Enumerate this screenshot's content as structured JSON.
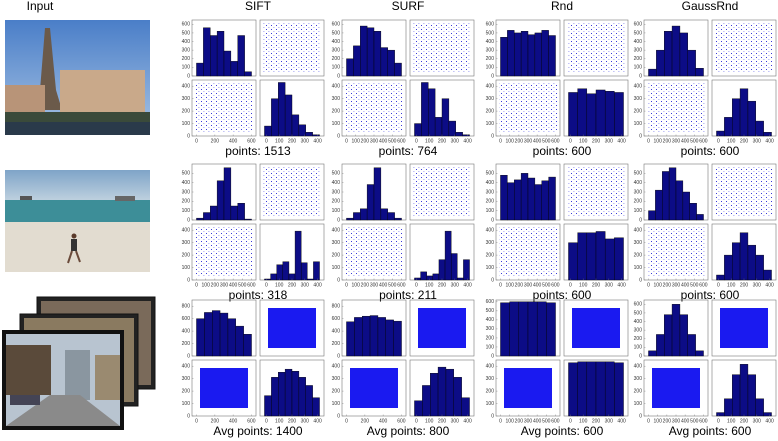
{
  "header": {
    "input": "Input",
    "methods": [
      "SIFT",
      "SURF",
      "Rnd",
      "GaussRnd"
    ]
  },
  "rows": [
    {
      "cells": [
        {
          "points": "points: 1513",
          "scatter": "sparse",
          "hx": [
            150,
            560,
            470,
            520,
            290,
            170,
            470,
            50
          ],
          "hx_ylim": [
            0,
            650
          ],
          "hx_yticks": [
            0,
            100,
            200,
            300,
            400,
            500,
            600
          ],
          "hy": [
            80,
            300,
            430,
            330,
            170,
            90,
            30,
            10
          ],
          "hy_ylim": [
            0,
            450
          ],
          "sc_ylim": [
            0,
            450
          ],
          "sc_yticks": [
            0,
            100,
            200,
            300,
            400
          ],
          "sc_xlim": [
            -50,
            650
          ],
          "sc_xticks": [
            0,
            200,
            400,
            600
          ],
          "hy_xlim": [
            -50,
            450
          ],
          "hy_xticks": [
            0,
            100,
            200,
            300,
            400
          ]
        },
        {
          "points": "points: 764",
          "scatter": "sparse",
          "hx": [
            200,
            350,
            580,
            560,
            520,
            330,
            300,
            150
          ],
          "hx_ylim": [
            0,
            650
          ],
          "hx_yticks": [
            0,
            100,
            200,
            300,
            400,
            500,
            600
          ],
          "hy": [
            100,
            430,
            380,
            150,
            300,
            120,
            30,
            10
          ],
          "hy_ylim": [
            0,
            450
          ],
          "sc_ylim": [
            0,
            450
          ],
          "sc_yticks": [
            0,
            100,
            200,
            300,
            400
          ],
          "sc_xlim": [
            -50,
            650
          ],
          "sc_xticks": [
            0,
            100,
            200,
            300,
            400,
            500,
            600
          ],
          "hy_xlim": [
            -50,
            450
          ],
          "hy_xticks": [
            0,
            100,
            200,
            300,
            400
          ]
        },
        {
          "points": "points: 600",
          "scatter": "sparse",
          "hx": [
            450,
            530,
            500,
            520,
            480,
            500,
            530,
            470
          ],
          "hx_ylim": [
            0,
            650
          ],
          "hx_yticks": [
            0,
            100,
            200,
            300,
            400,
            500,
            600
          ],
          "hy": [
            350,
            380,
            340,
            370,
            360,
            350
          ],
          "hy_ylim": [
            0,
            450
          ],
          "sc_ylim": [
            0,
            450
          ],
          "sc_yticks": [
            0,
            100,
            200,
            300,
            400
          ],
          "sc_xlim": [
            -50,
            650
          ],
          "sc_xticks": [
            0,
            100,
            200,
            300,
            400,
            500,
            600
          ],
          "hy_xlim": [
            -50,
            450
          ],
          "hy_xticks": [
            0,
            100,
            200,
            300,
            400
          ]
        },
        {
          "points": "points: 600",
          "scatter": "sparse",
          "hx": [
            80,
            300,
            520,
            580,
            500,
            300,
            90
          ],
          "hx_ylim": [
            0,
            650
          ],
          "hx_yticks": [
            0,
            100,
            200,
            300,
            400,
            500,
            600
          ],
          "hy": [
            40,
            150,
            300,
            380,
            280,
            120,
            30
          ],
          "hy_ylim": [
            0,
            450
          ],
          "sc_ylim": [
            0,
            450
          ],
          "sc_yticks": [
            0,
            100,
            200,
            300,
            400
          ],
          "sc_xlim": [
            -50,
            650
          ],
          "sc_xticks": [
            0,
            100,
            200,
            300,
            400,
            500,
            600
          ],
          "hy_xlim": [
            -50,
            450
          ],
          "hy_xticks": [
            0,
            100,
            200,
            300,
            400
          ]
        }
      ]
    },
    {
      "cells": [
        {
          "points": "points: 318",
          "scatter": "sparse",
          "hx": [
            20,
            80,
            150,
            420,
            560,
            150,
            180,
            10
          ],
          "hx_ylim": [
            0,
            600
          ],
          "hx_yticks": [
            0,
            100,
            200,
            300,
            400,
            500
          ],
          "hy": [
            10,
            60,
            150,
            180,
            60,
            480,
            170,
            10,
            180
          ],
          "hy_ylim": [
            0,
            550
          ],
          "sc_ylim": [
            0,
            450
          ],
          "sc_yticks": [
            0,
            100,
            200,
            300,
            400
          ],
          "sc_xlim": [
            -50,
            650
          ],
          "sc_xticks": [
            0,
            100,
            200,
            300,
            400,
            500,
            600
          ],
          "hy_xlim": [
            -50,
            450
          ],
          "hy_xticks": [
            0,
            100,
            200,
            300,
            400
          ]
        },
        {
          "points": "points: 211",
          "scatter": "sparse",
          "hx": [
            20,
            80,
            120,
            380,
            560,
            120,
            80,
            20
          ],
          "hx_ylim": [
            0,
            600
          ],
          "hx_yticks": [
            0,
            100,
            200,
            300,
            400,
            500
          ],
          "hy": [
            20,
            80,
            40,
            60,
            200,
            480,
            260,
            20,
            200
          ],
          "hy_ylim": [
            0,
            550
          ],
          "sc_ylim": [
            0,
            450
          ],
          "sc_yticks": [
            0,
            100,
            200,
            300,
            400
          ],
          "sc_xlim": [
            -50,
            650
          ],
          "sc_xticks": [
            0,
            100,
            200,
            300,
            400,
            500,
            600
          ],
          "hy_xlim": [
            -50,
            450
          ],
          "hy_xticks": [
            0,
            100,
            200,
            300,
            400
          ]
        },
        {
          "points": "points: 600",
          "scatter": "sparse",
          "hx": [
            480,
            400,
            430,
            500,
            450,
            380,
            420,
            460
          ],
          "hx_ylim": [
            0,
            600
          ],
          "hx_yticks": [
            0,
            100,
            200,
            300,
            400,
            500
          ],
          "hy": [
            300,
            380,
            380,
            390,
            330,
            340
          ],
          "hy_ylim": [
            0,
            450
          ],
          "sc_ylim": [
            0,
            450
          ],
          "sc_yticks": [
            0,
            100,
            200,
            300,
            400
          ],
          "sc_xlim": [
            -50,
            650
          ],
          "sc_xticks": [
            0,
            100,
            200,
            300,
            400,
            500,
            600
          ],
          "hy_xlim": [
            -50,
            450
          ],
          "hy_xticks": [
            0,
            100,
            200,
            300,
            400
          ]
        },
        {
          "points": "points: 600",
          "scatter": "sparse",
          "hx": [
            100,
            320,
            520,
            560,
            420,
            300,
            180,
            60
          ],
          "hx_ylim": [
            0,
            600
          ],
          "hx_yticks": [
            0,
            100,
            200,
            300,
            400,
            500
          ],
          "hy": [
            40,
            200,
            300,
            380,
            280,
            200,
            80
          ],
          "hy_ylim": [
            0,
            450
          ],
          "sc_ylim": [
            0,
            450
          ],
          "sc_yticks": [
            0,
            100,
            200,
            300,
            400
          ],
          "sc_xlim": [
            -50,
            650
          ],
          "sc_xticks": [
            0,
            100,
            200,
            300,
            400,
            500,
            600
          ],
          "hy_xlim": [
            -50,
            450
          ],
          "hy_xticks": [
            0,
            100,
            200,
            300,
            400
          ]
        }
      ]
    },
    {
      "cells": [
        {
          "points": "Avg points: 1400",
          "scatter": "solid",
          "hx": [
            600,
            700,
            730,
            690,
            600,
            480,
            350
          ],
          "hx_ylim": [
            0,
            900
          ],
          "hx_yticks": [
            0,
            200,
            400,
            600,
            800
          ],
          "hy": [
            200,
            380,
            430,
            460,
            440,
            380,
            300,
            180
          ],
          "hy_ylim": [
            0,
            550
          ],
          "sc_ylim": [
            0,
            450
          ],
          "sc_yticks": [
            0,
            100,
            200,
            300,
            400
          ],
          "sc_xlim": [
            -50,
            650
          ],
          "sc_xticks": [
            0,
            200,
            400,
            600
          ],
          "hy_xlim": [
            -50,
            450
          ],
          "hy_xticks": [
            0,
            100,
            200,
            300,
            400
          ]
        },
        {
          "points": "Avg points: 800",
          "scatter": "solid",
          "hx": [
            550,
            620,
            640,
            650,
            620,
            580,
            560
          ],
          "hx_ylim": [
            0,
            900
          ],
          "hx_yticks": [
            0,
            200,
            400,
            600,
            800
          ],
          "hy": [
            150,
            300,
            420,
            480,
            460,
            380,
            180
          ],
          "hy_ylim": [
            0,
            550
          ],
          "sc_ylim": [
            0,
            450
          ],
          "sc_yticks": [
            0,
            100,
            200,
            300,
            400
          ],
          "sc_xlim": [
            -50,
            650
          ],
          "sc_xticks": [
            0,
            200,
            400,
            600
          ],
          "hy_xlim": [
            -50,
            450
          ],
          "hy_xticks": [
            0,
            100,
            200,
            300,
            400
          ]
        },
        {
          "points": "Avg points: 600",
          "scatter": "solid",
          "hx": [
            590,
            600,
            600,
            600,
            600,
            590
          ],
          "hx_ylim": [
            0,
            620
          ],
          "hx_yticks": [
            0,
            100,
            200,
            300,
            400,
            500,
            600
          ],
          "hy": [
            590,
            600,
            600,
            600,
            600,
            590
          ],
          "hy_ylim": [
            0,
            620
          ],
          "sc_ylim": [
            0,
            450
          ],
          "sc_yticks": [
            0,
            100,
            200,
            300,
            400
          ],
          "sc_xlim": [
            -50,
            650
          ],
          "sc_xticks": [
            0,
            100,
            200,
            300,
            400,
            500,
            600
          ],
          "hy_xlim": [
            -50,
            450
          ],
          "hy_xticks": [
            0,
            100,
            200,
            300,
            400
          ]
        },
        {
          "points": "Avg points: 600",
          "scatter": "solid",
          "hx": [
            60,
            250,
            480,
            600,
            480,
            250,
            60
          ],
          "hx_ylim": [
            0,
            650
          ],
          "hx_yticks": [
            0,
            100,
            200,
            300,
            400,
            500,
            600
          ],
          "hy": [
            40,
            200,
            480,
            600,
            480,
            200,
            40
          ],
          "hy_ylim": [
            0,
            650
          ],
          "sc_ylim": [
            0,
            450
          ],
          "sc_yticks": [
            0,
            100,
            200,
            300,
            400
          ],
          "sc_xlim": [
            -50,
            650
          ],
          "sc_xticks": [
            0,
            100,
            200,
            300,
            400,
            500,
            600
          ],
          "hy_xlim": [
            -50,
            450
          ],
          "hy_xticks": [
            0,
            100,
            200,
            300,
            400
          ]
        }
      ]
    }
  ]
}
